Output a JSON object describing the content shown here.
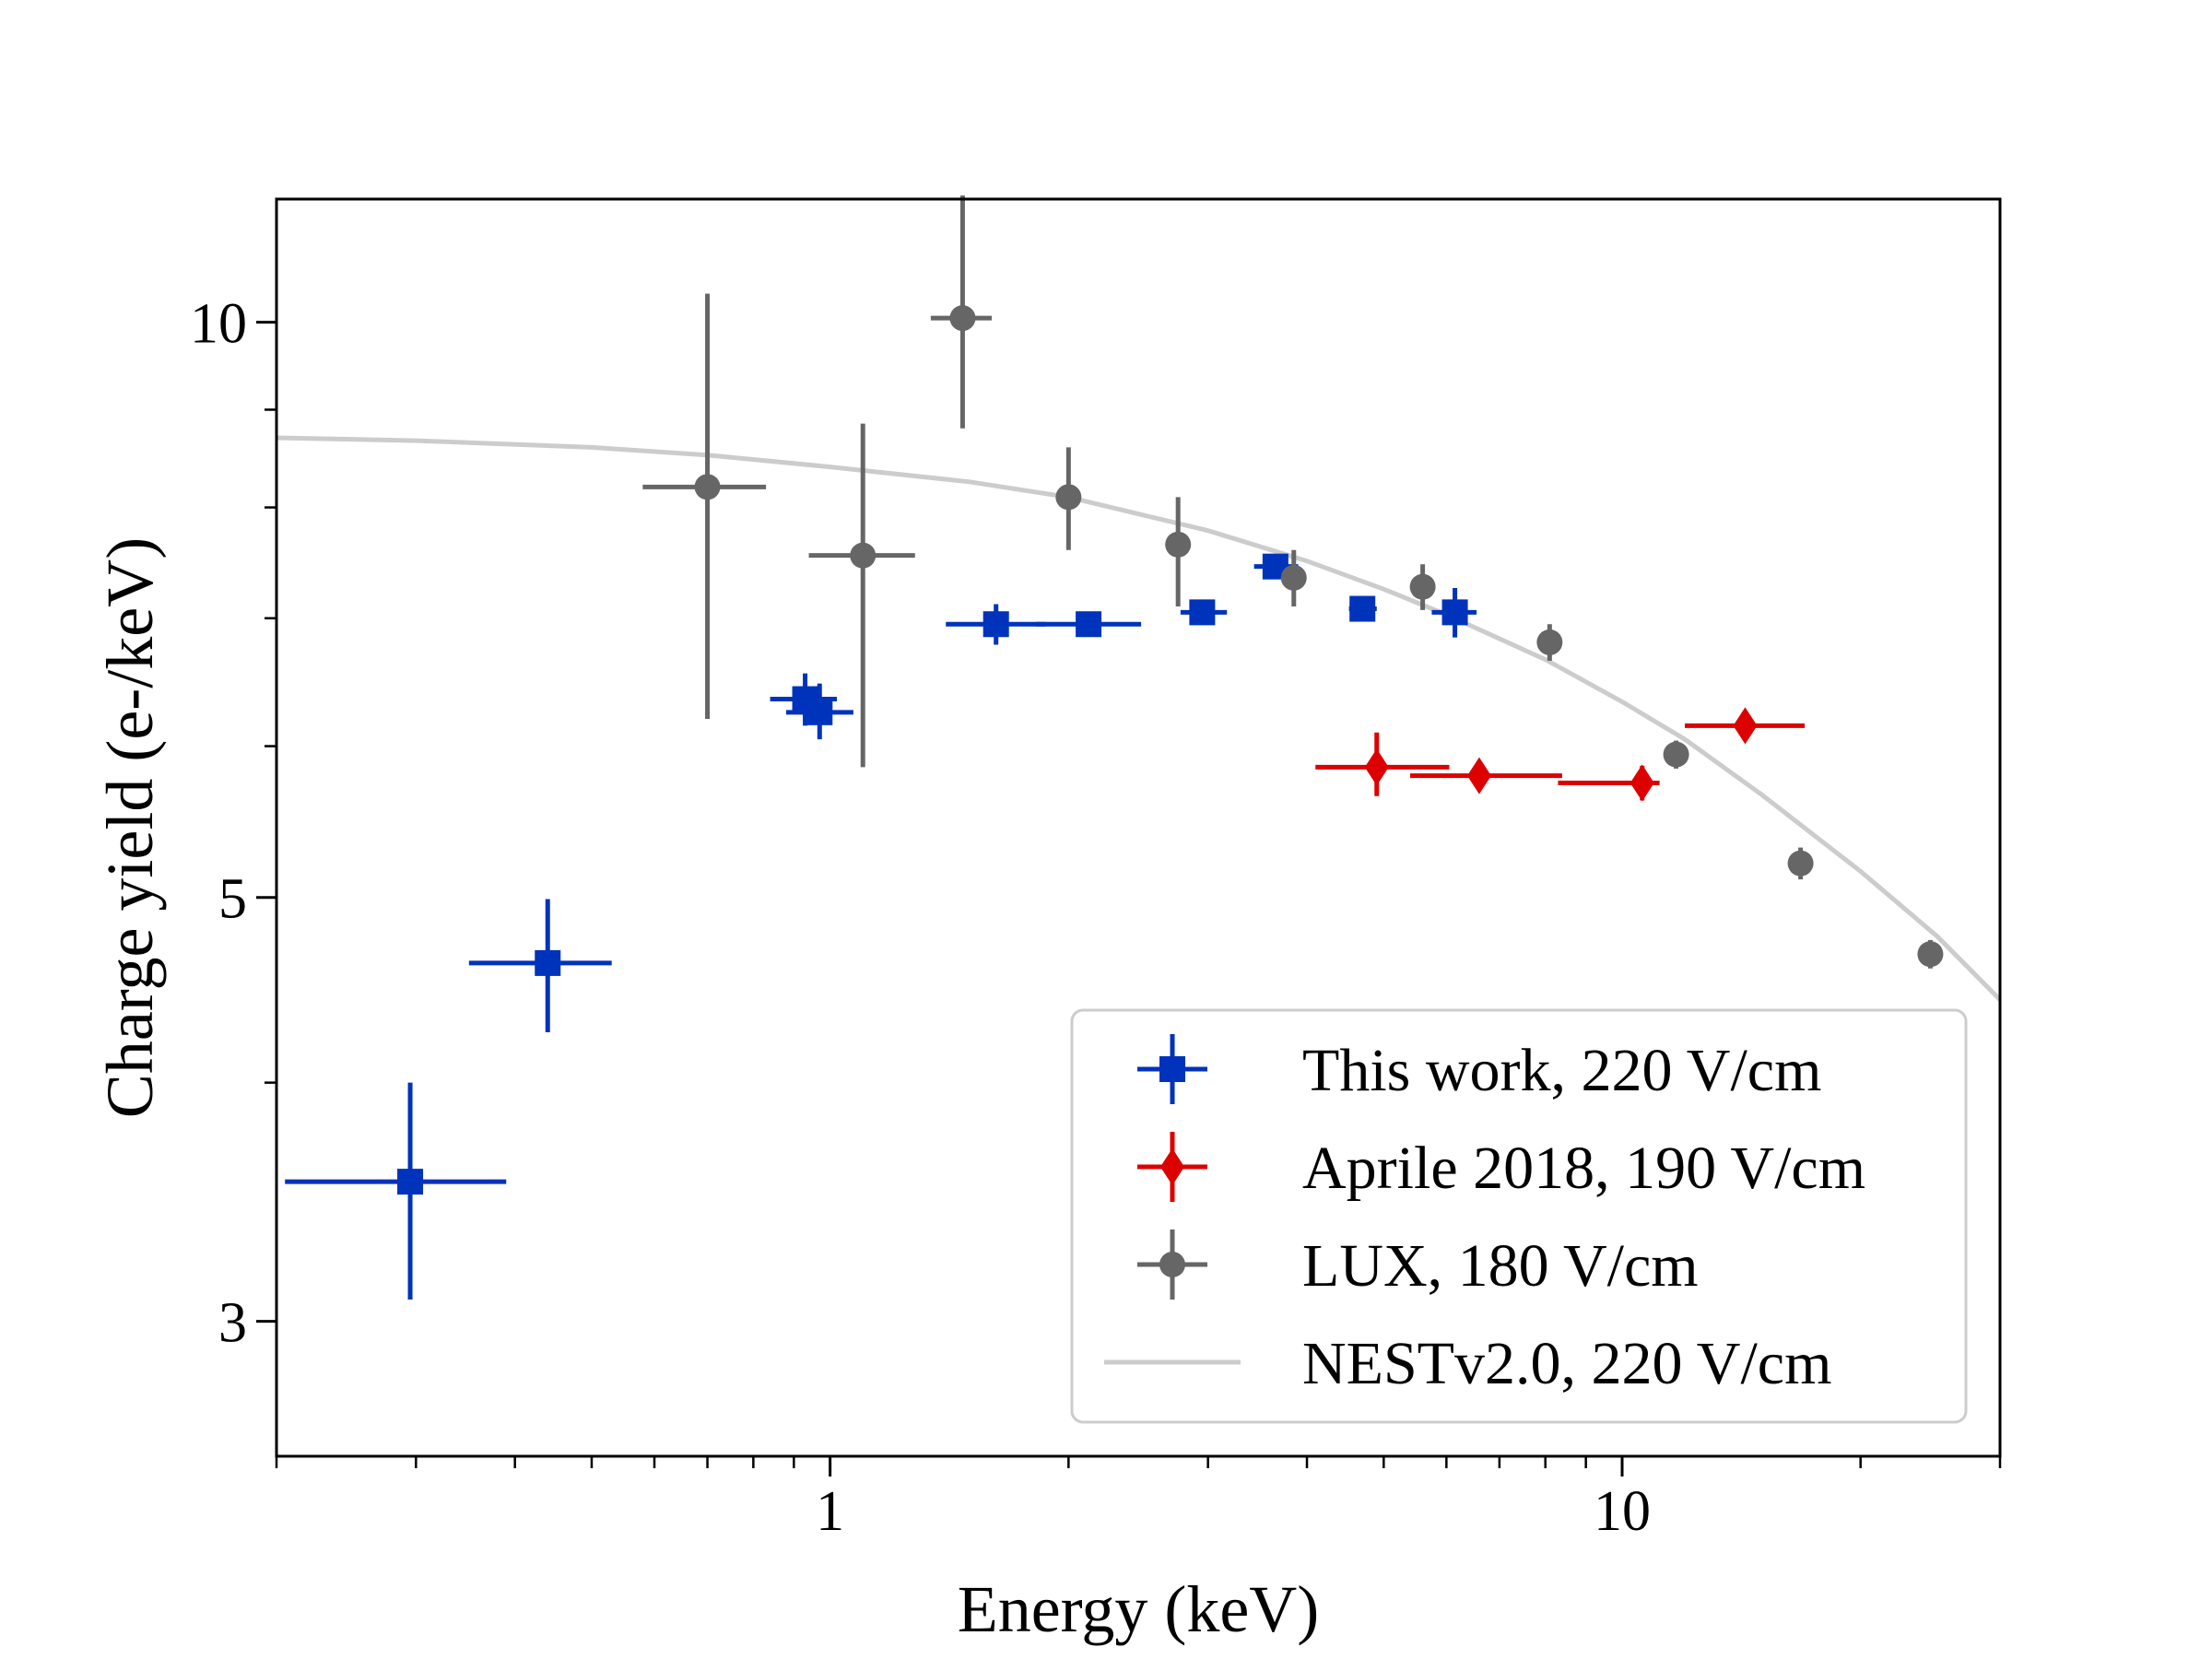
{
  "chart_data": {
    "type": "scatter",
    "title": "",
    "xlabel": "Energy (keV)",
    "ylabel": "Charge yield (e-/keV)",
    "xscale": "log",
    "yscale": "log",
    "xlim": [
      0.2,
      30
    ],
    "ylim": [
      2.55,
      11.6
    ],
    "grid": false,
    "legend_position": "lower-right",
    "x_ticks": [
      {
        "value": 1,
        "label": "1"
      },
      {
        "value": 10,
        "label": "10"
      }
    ],
    "y_ticks": [
      {
        "value": 3,
        "label": "3"
      },
      {
        "value": 5,
        "label": "5"
      },
      {
        "value": 10,
        "label": "10"
      }
    ],
    "series": [
      {
        "name": "This work, 220 V/cm",
        "marker": "square",
        "color": "#0033bb",
        "points": [
          {
            "x": 0.295,
            "y": 3.55,
            "xerr": [
              0.09,
              0.095
            ],
            "yerr": [
              0.47,
              0.45
            ]
          },
          {
            "x": 0.44,
            "y": 4.62,
            "xerr": [
              0.09,
              0.09
            ],
            "yerr": [
              0.37,
              0.37
            ]
          },
          {
            "x": 0.93,
            "y": 6.35,
            "xerr": [
              0.09,
              0.09
            ],
            "yerr": [
              0.2,
              0.2
            ]
          },
          {
            "x": 0.97,
            "y": 6.25,
            "xerr": [
              0.09,
              0.1
            ],
            "yerr": [
              0.2,
              0.22
            ]
          },
          {
            "x": 1.62,
            "y": 6.95,
            "xerr": [
              0.22,
              0.25
            ],
            "yerr": [
              0.17,
              0.17
            ]
          },
          {
            "x": 2.12,
            "y": 6.95,
            "xerr": [
              0.3,
              0.35
            ],
            "yerr": [
              0.06,
              0.06
            ]
          },
          {
            "x": 2.95,
            "y": 7.05,
            "xerr": [
              0.18,
              0.22
            ],
            "yerr": [
              0.06,
              0.06
            ]
          },
          {
            "x": 3.65,
            "y": 7.45,
            "xerr": [
              0.22,
              0.25
            ],
            "yerr": [
              0.07,
              0.07
            ]
          },
          {
            "x": 4.7,
            "y": 7.08,
            "xerr": [
              0.18,
              0.2
            ],
            "yerr": [
              0.05,
              0.05
            ]
          },
          {
            "x": 6.15,
            "y": 7.05,
            "xerr": [
              0.4,
              0.4
            ],
            "yerr": [
              0.21,
              0.21
            ]
          }
        ]
      },
      {
        "name": "Aprile 2018, 190 V/cm",
        "marker": "diamond",
        "color": "#dd0000",
        "points": [
          {
            "x": 4.9,
            "y": 5.85,
            "xerr": [
              0.8,
              1.15
            ],
            "yerr": [
              0.2,
              0.25
            ]
          },
          {
            "x": 6.6,
            "y": 5.79,
            "xerr": [
              1.2,
              1.8
            ],
            "yerr": [
              0.1,
              0.1
            ]
          },
          {
            "x": 10.6,
            "y": 5.74,
            "xerr": [
              2.3,
              0.55
            ],
            "yerr": [
              0.12,
              0.12
            ]
          },
          {
            "x": 14.3,
            "y": 6.15,
            "xerr": [
              2.3,
              2.7
            ],
            "yerr": [
              0.07,
              0.07
            ]
          }
        ]
      },
      {
        "name": "LUX, 180 V/cm",
        "marker": "circle",
        "color": "#666666",
        "points": [
          {
            "x": 0.7,
            "y": 8.2,
            "xerr": [
              0.12,
              0.13
            ],
            "yerr": [
              2.0,
              2.15
            ]
          },
          {
            "x": 1.1,
            "y": 7.55,
            "xerr": [
              0.16,
              0.18
            ],
            "yerr": [
              1.7,
              1.3
            ]
          },
          {
            "x": 1.47,
            "y": 10.05,
            "xerr": [
              0.13,
              0.13
            ],
            "yerr": [
              1.25,
              1.6
            ]
          },
          {
            "x": 2.0,
            "y": 8.1,
            "xerr": [
              0,
              0
            ],
            "yerr": [
              0.5,
              0.5
            ]
          },
          {
            "x": 2.75,
            "y": 7.65,
            "xerr": [
              0,
              0
            ],
            "yerr": [
              0.55,
              0.45
            ]
          },
          {
            "x": 3.85,
            "y": 7.35,
            "xerr": [
              0,
              0
            ],
            "yerr": [
              0.25,
              0.25
            ]
          },
          {
            "x": 5.6,
            "y": 7.27,
            "xerr": [
              0,
              0
            ],
            "yerr": [
              0.2,
              0.2
            ]
          },
          {
            "x": 8.1,
            "y": 6.8,
            "xerr": [
              0,
              0
            ],
            "yerr": [
              0.15,
              0.15
            ]
          },
          {
            "x": 11.7,
            "y": 5.94,
            "xerr": [
              0,
              0
            ],
            "yerr": [
              0.1,
              0.1
            ]
          },
          {
            "x": 16.8,
            "y": 5.21,
            "xerr": [
              0,
              0
            ],
            "yerr": [
              0.1,
              0.1
            ]
          },
          {
            "x": 24.5,
            "y": 4.67,
            "xerr": [
              0,
              0
            ],
            "yerr": [
              0.08,
              0.08
            ]
          }
        ]
      },
      {
        "name": "NESTv2.0, 220 V/cm",
        "marker": "line",
        "color": "#cccccc",
        "x": [
          0.2,
          0.3,
          0.5,
          0.7,
          1.0,
          1.5,
          2.0,
          3.0,
          4.0,
          5.0,
          6.0,
          8.0,
          10.0,
          12.0,
          15.0,
          20.0,
          25.0,
          30.0
        ],
        "values": [
          8.7,
          8.67,
          8.6,
          8.52,
          8.4,
          8.25,
          8.1,
          7.78,
          7.5,
          7.25,
          7.03,
          6.66,
          6.33,
          6.05,
          5.66,
          5.16,
          4.77,
          4.42
        ]
      }
    ]
  }
}
